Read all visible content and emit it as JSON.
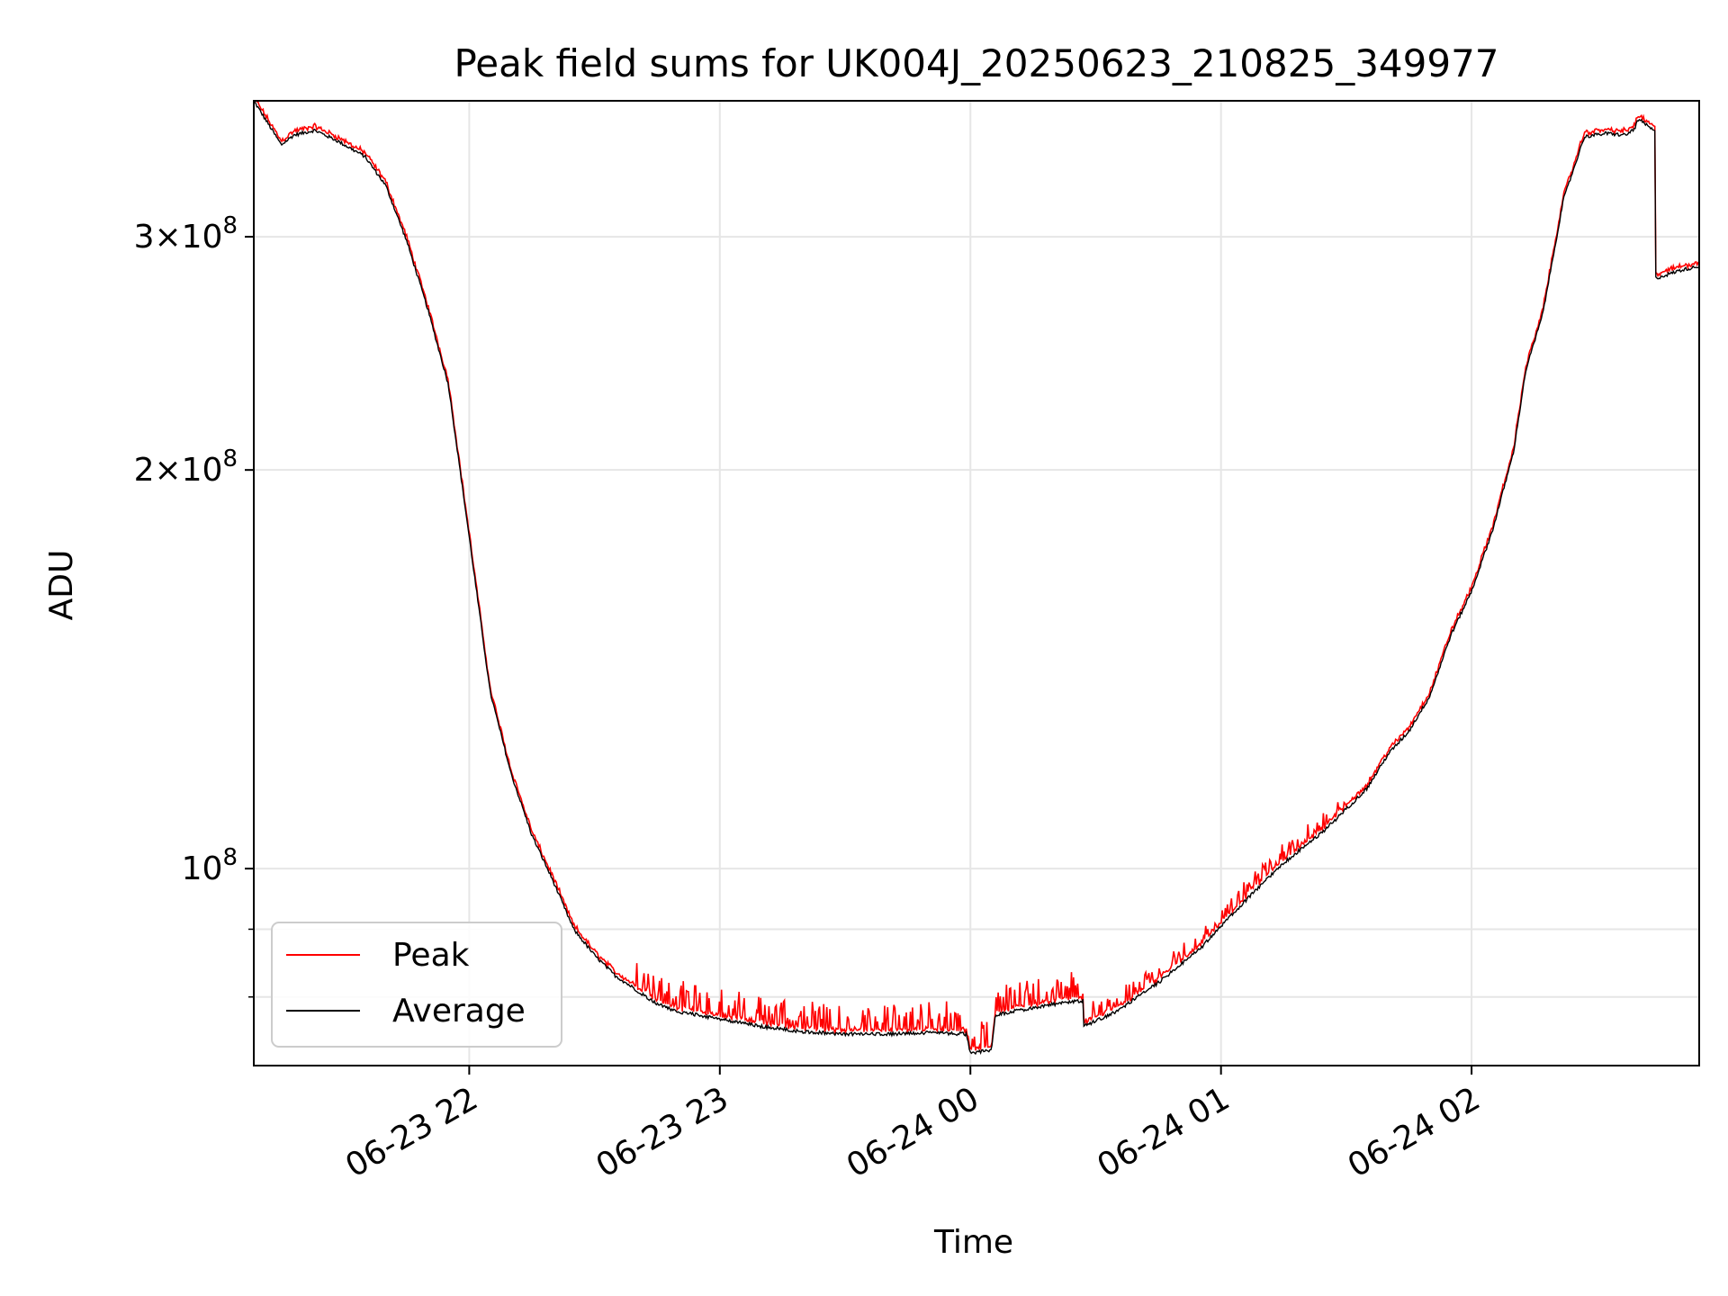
{
  "chart_data": {
    "type": "line",
    "title": "Peak field sums for UK004J_20250623_210825_349977",
    "xlabel": "Time",
    "ylabel": "ADU",
    "y_scale": "log",
    "ylim": [
      71000000,
      380000000
    ],
    "xlim": [
      "2025-06-23 21:08:25",
      "2025-06-24 02:54:30"
    ],
    "grid": true,
    "legend_position": "lower-left",
    "x_ticks": [
      {
        "t": "2025-06-23 22:00",
        "label": "06-23 22"
      },
      {
        "t": "2025-06-23 23:00",
        "label": "06-23 23"
      },
      {
        "t": "2025-06-24 00:00",
        "label": "06-24 00"
      },
      {
        "t": "2025-06-24 01:00",
        "label": "06-24 01"
      },
      {
        "t": "2025-06-24 02:00",
        "label": "06-24 02"
      }
    ],
    "y_major_ticks": [
      {
        "value": 100000000,
        "base": "10",
        "exp": "8"
      },
      {
        "value": 200000000,
        "mant": "2",
        "base": "10",
        "exp": "8"
      },
      {
        "value": 300000000,
        "mant": "3",
        "base": "10",
        "exp": "8"
      }
    ],
    "y_minor_ticks": [
      80000000,
      90000000
    ],
    "series": [
      {
        "name": "Peak",
        "color": "#ff0000"
      },
      {
        "name": "Average",
        "color": "#000000"
      }
    ],
    "average": {
      "t": [
        "2025-06-23 21:08:25",
        "2025-06-23 21:15",
        "2025-06-23 21:18",
        "2025-06-23 21:23",
        "2025-06-23 21:28",
        "2025-06-23 21:35",
        "2025-06-23 21:40",
        "2025-06-23 21:45",
        "2025-06-23 21:50",
        "2025-06-23 21:55",
        "2025-06-23 22:00",
        "2025-06-23 22:05",
        "2025-06-23 22:10",
        "2025-06-23 22:15",
        "2025-06-23 22:20",
        "2025-06-23 22:25",
        "2025-06-23 22:30",
        "2025-06-23 22:35",
        "2025-06-23 22:40",
        "2025-06-23 22:45",
        "2025-06-23 22:50",
        "2025-06-23 23:00",
        "2025-06-23 23:10",
        "2025-06-23 23:20",
        "2025-06-23 23:30",
        "2025-06-23 23:40",
        "2025-06-23 23:50",
        "2025-06-23 23:59",
        "2025-06-24 00:00",
        "2025-06-24 00:05",
        "2025-06-24 00:06",
        "2025-06-24 00:10",
        "2025-06-24 00:15",
        "2025-06-24 00:20",
        "2025-06-24 00:27",
        "2025-06-24 00:27",
        "2025-06-24 00:35",
        "2025-06-24 00:45",
        "2025-06-24 00:55",
        "2025-06-24 01:05",
        "2025-06-24 01:15",
        "2025-06-24 01:25",
        "2025-06-24 01:35",
        "2025-06-24 01:40",
        "2025-06-24 01:45",
        "2025-06-24 01:50",
        "2025-06-24 01:55",
        "2025-06-24 02:00",
        "2025-06-24 02:05",
        "2025-06-24 02:10",
        "2025-06-24 02:13",
        "2025-06-24 02:17",
        "2025-06-24 02:22",
        "2025-06-24 02:27",
        "2025-06-24 02:32",
        "2025-06-24 02:37",
        "2025-06-24 02:39",
        "2025-06-24 02:40",
        "2025-06-24 02:44",
        "2025-06-24 02:44",
        "2025-06-24 02:50",
        "2025-06-24 02:54:30"
      ],
      "y": [
        380000000,
        352000000,
        358000000,
        361000000,
        355000000,
        345000000,
        328000000,
        298000000,
        265000000,
        232000000,
        178000000,
        136000000,
        118000000,
        106000000,
        98000000,
        90000000,
        86000000,
        83000000,
        81000000,
        79000000,
        78000000,
        77000000,
        76000000,
        75300000,
        75000000,
        75000000,
        75200000,
        75000000,
        72500000,
        73000000,
        77500000,
        78000000,
        78500000,
        79000000,
        79500000,
        76000000,
        78000000,
        82000000,
        87000000,
        94000000,
        101000000,
        107000000,
        115000000,
        122000000,
        127000000,
        135000000,
        150000000,
        162000000,
        180000000,
        206000000,
        238000000,
        262000000,
        320000000,
        357000000,
        359000000,
        358000000,
        362000000,
        368000000,
        360000000,
        279000000,
        283000000,
        285000000
      ]
    }
  }
}
